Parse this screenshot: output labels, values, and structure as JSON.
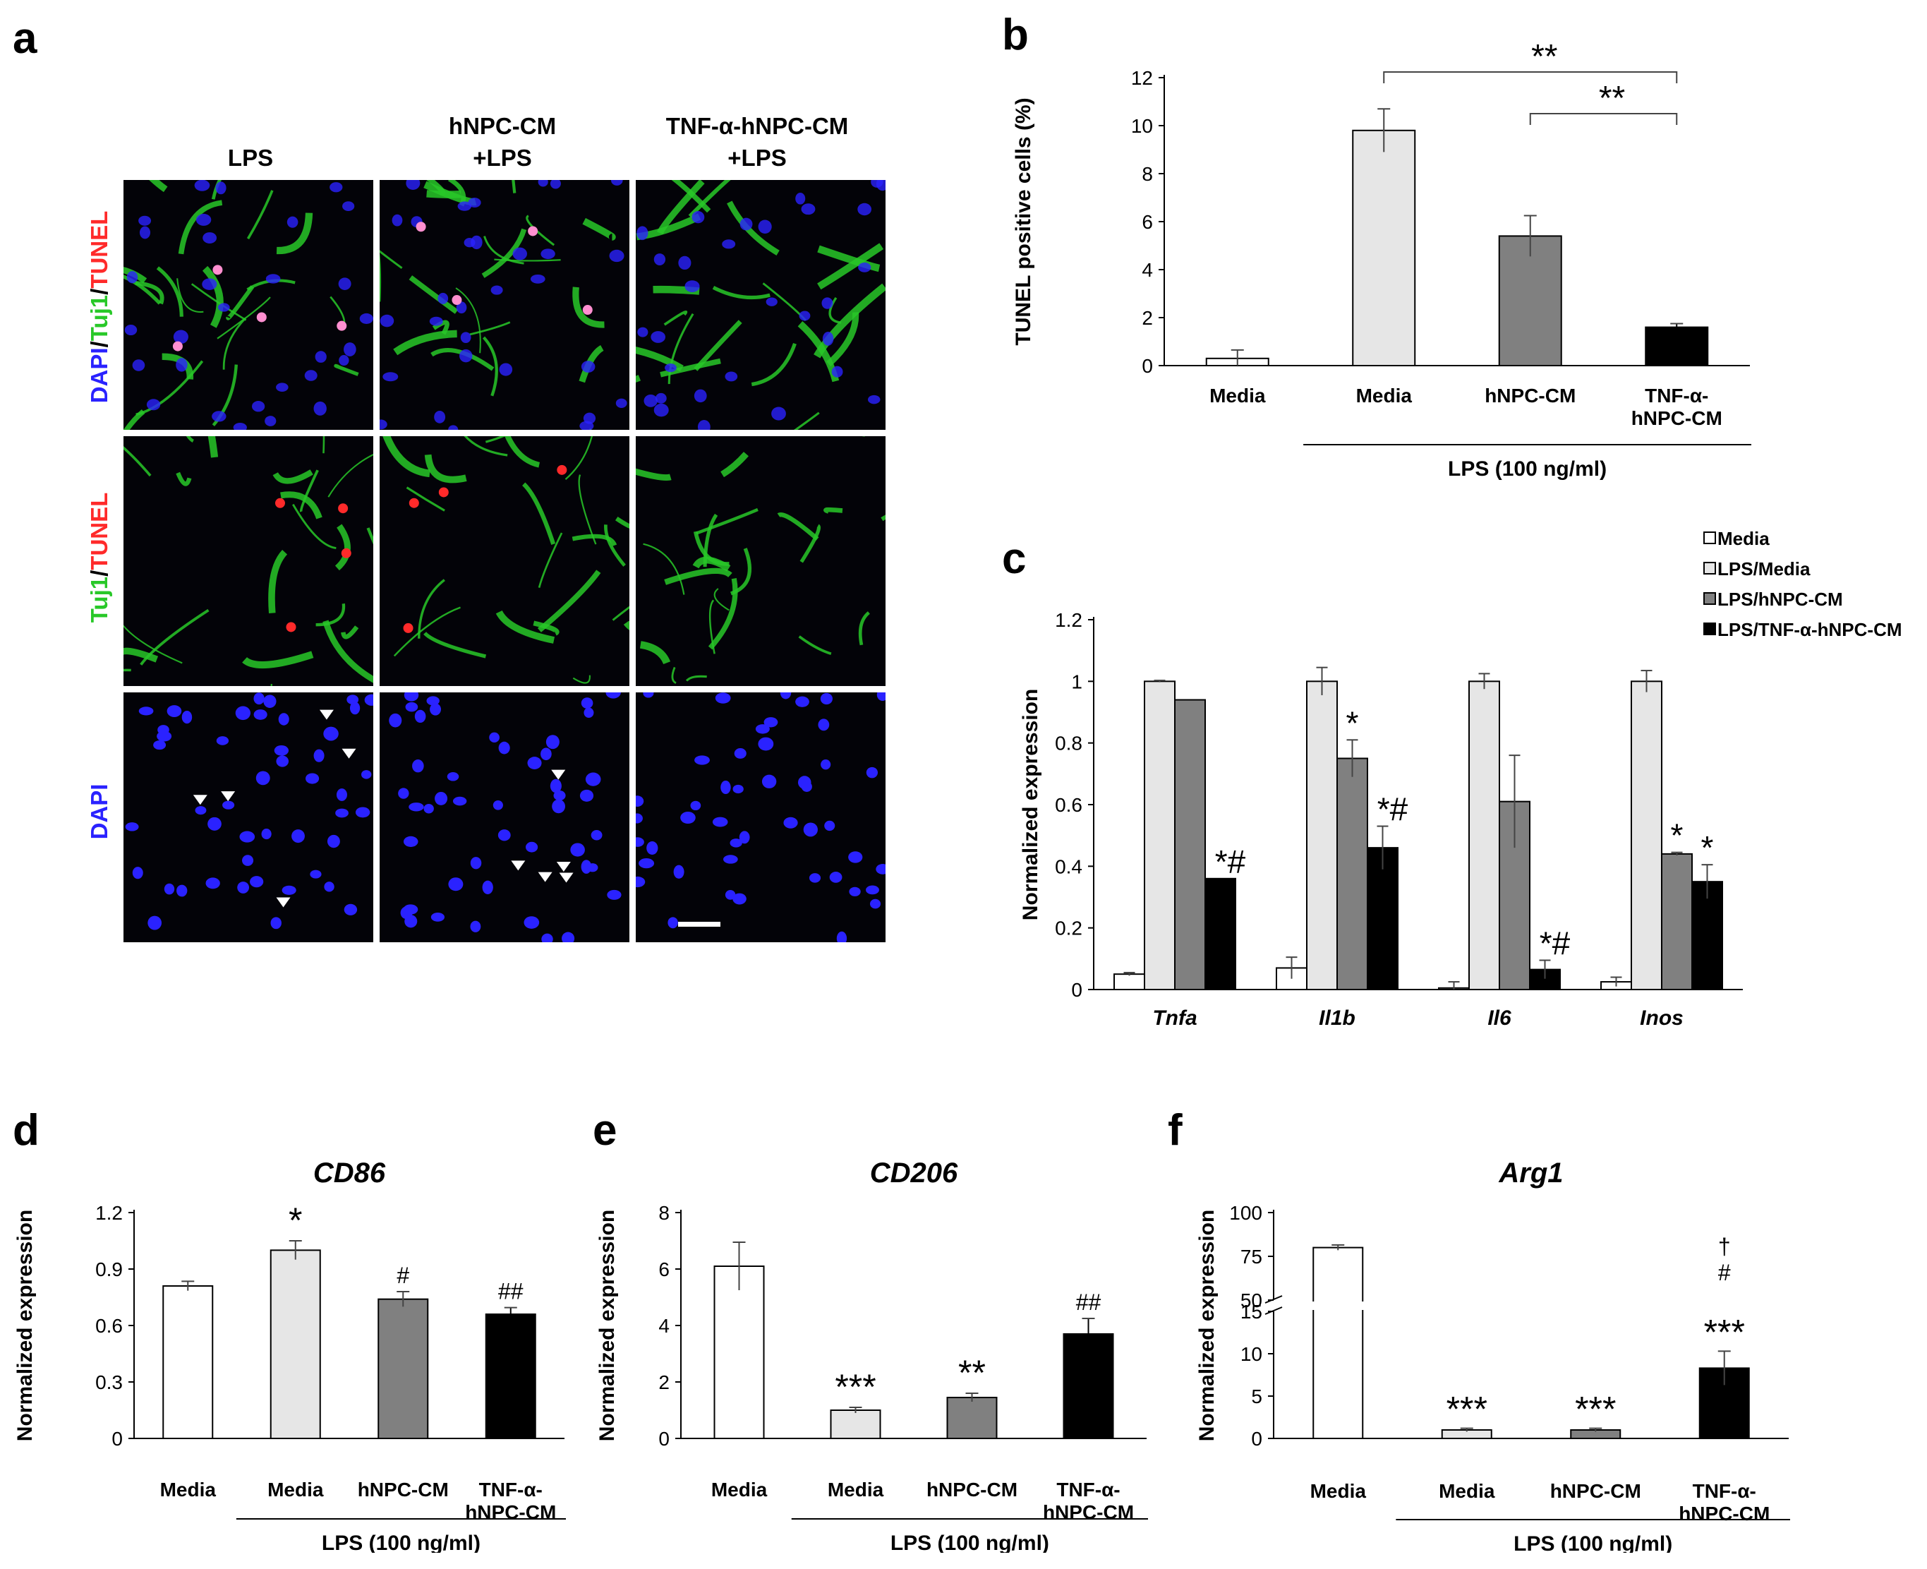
{
  "panel_letters": [
    "a",
    "b",
    "c",
    "d",
    "e",
    "f"
  ],
  "panel_a": {
    "column_labels": [
      "LPS",
      "hNPC-CM",
      "+LPS",
      "TNF-α-hNPC-CM",
      "+LPS"
    ],
    "row_labels": {
      "row1": [
        "DAPI",
        "/",
        "Tuj1",
        "/",
        "TUNEL"
      ],
      "row2": [
        "Tuj1",
        "/",
        "TUNEL"
      ],
      "row3": [
        "DAPI"
      ]
    },
    "colors": {
      "dapi": "#2a22ff",
      "tuj1": "#28c828",
      "tunel": "#ff2a2a"
    }
  },
  "chart_data": [
    {
      "id": "b",
      "type": "bar",
      "categories": [
        "Media",
        "Media",
        "hNPC-CM",
        "TNF-α-\nhNPC-CM"
      ],
      "values": [
        0.3,
        9.8,
        5.4,
        1.6
      ],
      "errors": [
        0.35,
        0.9,
        0.85,
        0.15
      ],
      "colors": [
        "#ffffff",
        "#e6e6e6",
        "#808080",
        "#000000"
      ],
      "ylabel": "TUNEL positive cells (%)",
      "ylim": [
        0,
        12
      ],
      "yticks": [
        0,
        2,
        4,
        6,
        8,
        10,
        12
      ],
      "group_label": "LPS (100 ng/ml)",
      "significance": [
        {
          "from": 1,
          "to": 3,
          "label": "**"
        },
        {
          "from": 2,
          "to": 3,
          "label": "**"
        }
      ]
    },
    {
      "id": "c",
      "type": "bar",
      "categories": [
        "Tnfa",
        "Il1b",
        "Il6",
        "Inos"
      ],
      "series": [
        {
          "name": "Media",
          "values": [
            0.05,
            0.07,
            0.005,
            0.025
          ],
          "errors": [
            0.005,
            0.035,
            0.02,
            0.015
          ],
          "color": "#ffffff"
        },
        {
          "name": "LPS/Media",
          "values": [
            1.0,
            1.0,
            1.0,
            1.0
          ],
          "errors": [
            0.003,
            0.045,
            0.025,
            0.035
          ],
          "color": "#e6e6e6"
        },
        {
          "name": "LPS/hNPC-CM",
          "values": [
            0.94,
            0.75,
            0.61,
            0.44
          ],
          "errors": [
            0.0,
            0.06,
            0.15,
            0.005
          ],
          "color": "#808080"
        },
        {
          "name": "LPS/TNF-α-hNPC-CM",
          "values": [
            0.36,
            0.46,
            0.065,
            0.35
          ],
          "errors": [
            0.0,
            0.07,
            0.03,
            0.055
          ],
          "color": "#000000"
        }
      ],
      "ylabel": "Normalized expression",
      "ylim": [
        0,
        1.2
      ],
      "yticks": [
        "0",
        "0.2",
        "0.4",
        "0.6",
        "0.8",
        "1",
        "1.2"
      ],
      "legend_position": "top-right",
      "annotations": [
        {
          "category": 0,
          "series": 3,
          "label": "*#"
        },
        {
          "category": 1,
          "series": 2,
          "label": "*"
        },
        {
          "category": 1,
          "series": 3,
          "label": "*#"
        },
        {
          "category": 2,
          "series": 3,
          "label": "*#"
        },
        {
          "category": 3,
          "series": 2,
          "label": "*"
        },
        {
          "category": 3,
          "series": 3,
          "label": "*"
        }
      ]
    },
    {
      "id": "d",
      "type": "bar",
      "title": "CD86",
      "categories": [
        "Media",
        "Media",
        "hNPC-CM",
        "TNF-α-\nhNPC-CM"
      ],
      "values": [
        0.81,
        1.0,
        0.74,
        0.66
      ],
      "errors": [
        0.025,
        0.05,
        0.04,
        0.035
      ],
      "colors": [
        "#ffffff",
        "#e6e6e6",
        "#808080",
        "#000000"
      ],
      "ylabel": "Normalized expression",
      "ylim": [
        0,
        1.2
      ],
      "yticks": [
        "0",
        "0.3",
        "0.6",
        "0.9",
        "1.2"
      ],
      "group_label": "LPS (100 ng/ml)",
      "annotations": [
        "",
        "*",
        "#",
        "##"
      ]
    },
    {
      "id": "e",
      "type": "bar",
      "title": "CD206",
      "categories": [
        "Media",
        "Media",
        "hNPC-CM",
        "TNF-α-\nhNPC-CM"
      ],
      "values": [
        6.1,
        1.0,
        1.45,
        3.7
      ],
      "errors": [
        0.85,
        0.1,
        0.15,
        0.55
      ],
      "colors": [
        "#ffffff",
        "#e6e6e6",
        "#808080",
        "#000000"
      ],
      "ylabel": "Normalized expression",
      "ylim": [
        0,
        8
      ],
      "yticks": [
        "0",
        "2",
        "4",
        "6",
        "8"
      ],
      "group_label": "LPS (100 ng/ml)",
      "annotations": [
        "",
        "***",
        "**",
        "##"
      ]
    },
    {
      "id": "f",
      "type": "bar",
      "title": "Arg1",
      "categories": [
        "Media",
        "Media",
        "hNPC-CM",
        "TNF-α-\nhNPC-CM"
      ],
      "values": [
        80,
        1.0,
        1.0,
        8.3
      ],
      "errors": [
        1.5,
        0.2,
        0.2,
        2.0
      ],
      "colors": [
        "#ffffff",
        "#e6e6e6",
        "#808080",
        "#000000"
      ],
      "ylabel": "Normalized expression",
      "yaxis_break": [
        15,
        50
      ],
      "ylim": [
        0,
        100
      ],
      "yticks": [
        "0",
        "5",
        "10",
        "15",
        "50",
        "75",
        "100"
      ],
      "group_label": "LPS (100 ng/ml)",
      "annotations": [
        "",
        "***",
        "***",
        "***"
      ],
      "annotations_above": [
        "",
        "",
        "",
        "†\n#"
      ]
    }
  ]
}
